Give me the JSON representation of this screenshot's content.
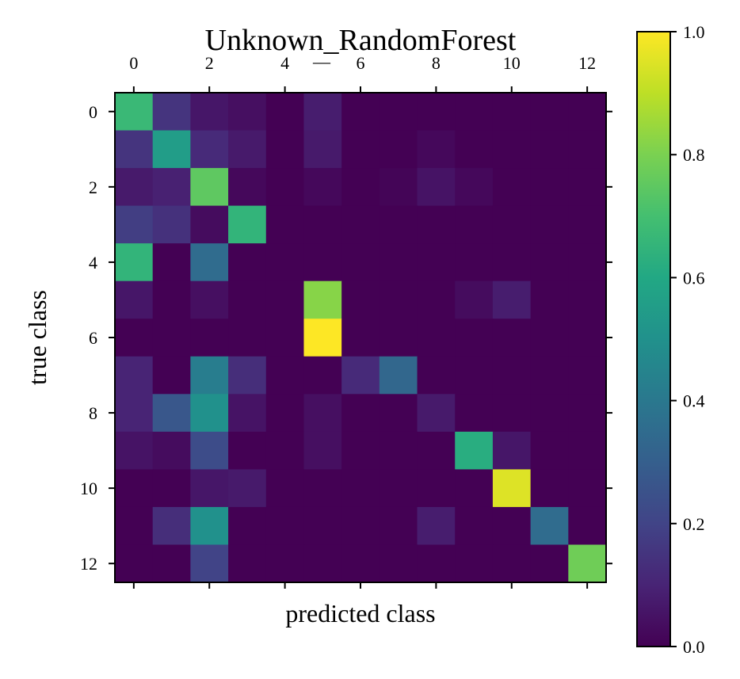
{
  "chart_data": {
    "type": "heatmap",
    "title": "Unknown_RandomForest",
    "xlabel": "predicted class",
    "ylabel": "true class",
    "x_tick_labels": [
      "0",
      "2",
      "4",
      "6",
      "8",
      "10",
      "12"
    ],
    "x_tick_values": [
      0,
      2,
      4,
      6,
      8,
      10,
      12
    ],
    "y_tick_labels": [
      "0",
      "2",
      "4",
      "6",
      "8",
      "10",
      "12"
    ],
    "y_tick_values": [
      0,
      2,
      4,
      6,
      8,
      10,
      12
    ],
    "x_axis_extra_label": "—",
    "x_ticks_position": "top",
    "colorbar": {
      "colormap": "viridis",
      "range": [
        0.0,
        1.0
      ],
      "tick_labels": [
        "0.0",
        "0.2",
        "0.4",
        "0.6",
        "0.8",
        "1.0"
      ],
      "tick_values": [
        0.0,
        0.2,
        0.4,
        0.6,
        0.8,
        1.0
      ]
    },
    "rows": [
      "0",
      "1",
      "2",
      "3",
      "4",
      "5",
      "6",
      "7",
      "8",
      "9",
      "10",
      "11",
      "12"
    ],
    "columns": [
      "0",
      "1",
      "2",
      "3",
      "4",
      "5",
      "6",
      "7",
      "8",
      "9",
      "10",
      "11",
      "12"
    ],
    "matrix": [
      [
        0.67,
        0.15,
        0.06,
        0.04,
        0.0,
        0.08,
        0.0,
        0.0,
        0.0,
        0.0,
        0.0,
        0.0,
        0.0
      ],
      [
        0.15,
        0.55,
        0.12,
        0.07,
        0.0,
        0.07,
        0.0,
        0.0,
        0.02,
        0.0,
        0.0,
        0.0,
        0.0
      ],
      [
        0.07,
        0.09,
        0.75,
        0.02,
        0.0,
        0.02,
        0.0,
        0.01,
        0.05,
        0.02,
        0.0,
        0.0,
        0.0
      ],
      [
        0.18,
        0.14,
        0.03,
        0.65,
        0.0,
        0.0,
        0.0,
        0.0,
        0.0,
        0.0,
        0.0,
        0.0,
        0.0
      ],
      [
        0.65,
        0.0,
        0.35,
        0.0,
        0.0,
        0.0,
        0.0,
        0.0,
        0.0,
        0.0,
        0.0,
        0.0,
        0.0
      ],
      [
        0.06,
        0.0,
        0.04,
        0.0,
        0.0,
        0.82,
        0.0,
        0.0,
        0.0,
        0.03,
        0.08,
        0.0,
        0.0
      ],
      [
        0.0,
        0.0,
        0.0,
        0.0,
        0.0,
        1.0,
        0.0,
        0.0,
        0.0,
        0.0,
        0.0,
        0.0,
        0.0
      ],
      [
        0.1,
        0.0,
        0.42,
        0.13,
        0.0,
        0.0,
        0.12,
        0.33,
        0.0,
        0.0,
        0.0,
        0.0,
        0.0
      ],
      [
        0.1,
        0.27,
        0.5,
        0.05,
        0.0,
        0.04,
        0.0,
        0.0,
        0.07,
        0.0,
        0.0,
        0.0,
        0.0
      ],
      [
        0.05,
        0.03,
        0.23,
        0.0,
        0.0,
        0.04,
        0.0,
        0.0,
        0.0,
        0.62,
        0.06,
        0.0,
        0.0
      ],
      [
        0.0,
        0.0,
        0.06,
        0.07,
        0.0,
        0.0,
        0.0,
        0.0,
        0.0,
        0.0,
        0.95,
        0.0,
        0.0
      ],
      [
        0.0,
        0.13,
        0.5,
        0.0,
        0.0,
        0.0,
        0.0,
        0.0,
        0.08,
        0.0,
        0.0,
        0.35,
        0.0
      ],
      [
        0.0,
        0.0,
        0.2,
        0.0,
        0.0,
        0.0,
        0.0,
        0.0,
        0.0,
        0.0,
        0.0,
        0.0,
        0.78
      ]
    ]
  }
}
